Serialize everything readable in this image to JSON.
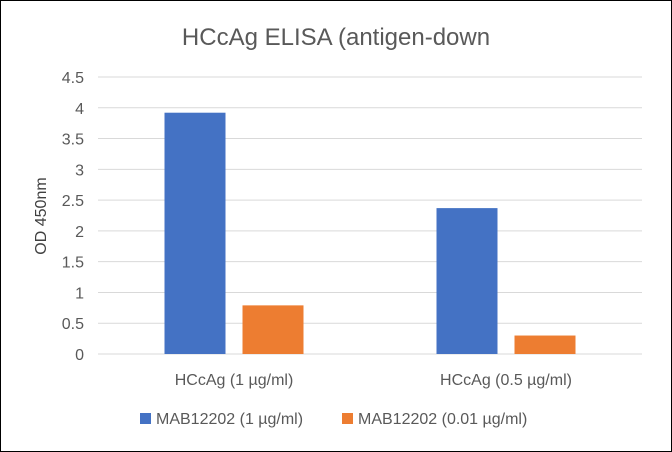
{
  "chart_data": {
    "type": "bar",
    "title": "HCcAg ELISA (antigen-down",
    "xlabel": "",
    "ylabel": "OD 450nm",
    "categories": [
      "HCcAg (1 µg/ml)",
      "HCcAg (0.5 µg/ml)"
    ],
    "series": [
      {
        "name": "MAB12202 (1 µg/ml)",
        "values": [
          3.92,
          2.37
        ],
        "color": "#4472c4"
      },
      {
        "name": "MAB12202 (0.01 µg/ml)",
        "values": [
          0.79,
          0.3
        ],
        "color": "#ed7d31"
      }
    ],
    "yticks": [
      "0",
      "0.5",
      "1",
      "1.5",
      "2",
      "2.5",
      "3",
      "3.5",
      "4",
      "4.5"
    ],
    "ylim": [
      0,
      4.5
    ],
    "grid": true,
    "legend": "bottom"
  }
}
